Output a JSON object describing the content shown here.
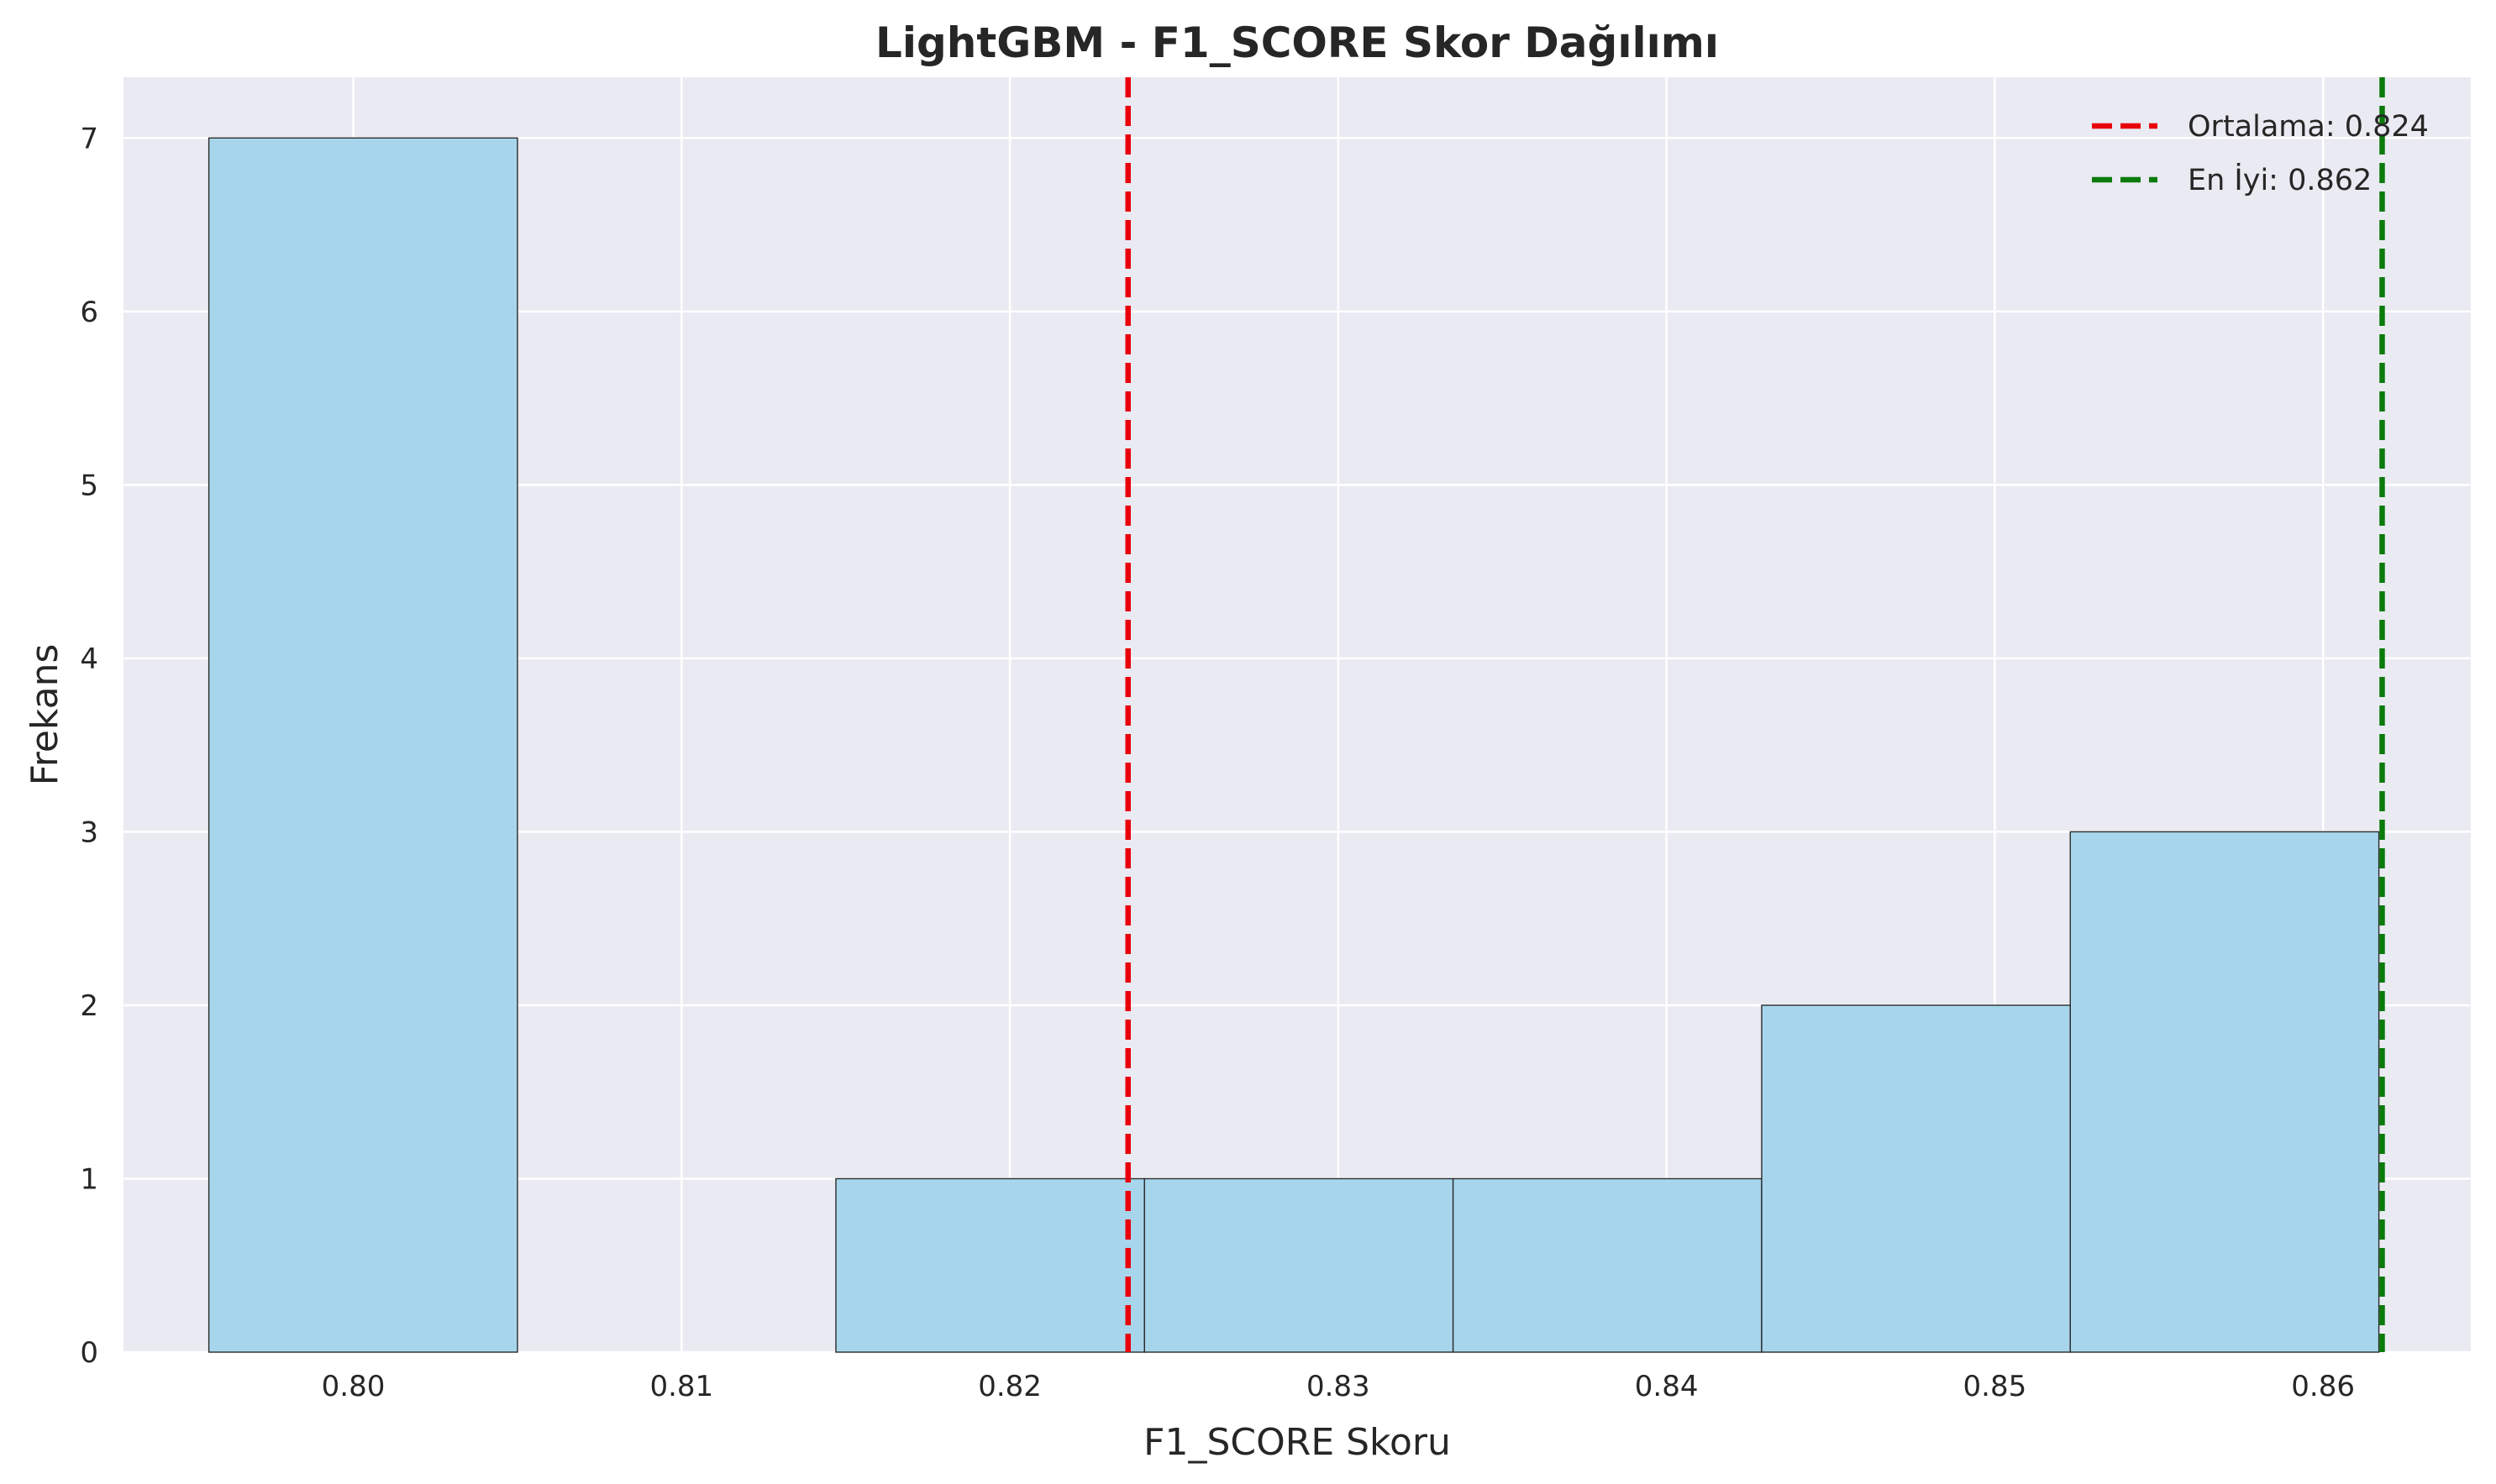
{
  "chart_data": {
    "type": "bar",
    "title": "LightGBM - F1_SCORE Skor Dağılımı",
    "xlabel": "F1_SCORE Skoru",
    "ylabel": "Frekans",
    "xlim": [
      0.793,
      0.8645
    ],
    "ylim": [
      0,
      7.35
    ],
    "x_ticks": [
      "0.80",
      "0.81",
      "0.82",
      "0.83",
      "0.84",
      "0.85",
      "0.86"
    ],
    "y_ticks": [
      "0",
      "1",
      "2",
      "3",
      "4",
      "5",
      "6",
      "7"
    ],
    "bins": [
      {
        "start": 0.7956,
        "end": 0.805,
        "count": 7
      },
      {
        "start": 0.805,
        "end": 0.8147,
        "count": 0
      },
      {
        "start": 0.8147,
        "end": 0.8241,
        "count": 1
      },
      {
        "start": 0.8241,
        "end": 0.8335,
        "count": 1
      },
      {
        "start": 0.8335,
        "end": 0.8429,
        "count": 1
      },
      {
        "start": 0.8429,
        "end": 0.8523,
        "count": 2
      },
      {
        "start": 0.8523,
        "end": 0.8617,
        "count": 3
      }
    ],
    "reference_lines": [
      {
        "label": "Ortalama: 0.824",
        "x": 0.8236,
        "color": "#e8000b",
        "style": "dashed"
      },
      {
        "label": "En İyi: 0.862",
        "x": 0.8618,
        "color": "#0a7a0a",
        "style": "dashed"
      }
    ],
    "bar_color": "#a5d5ec",
    "background": "#eaeaf2",
    "grid": true,
    "legend_position": "top-right"
  }
}
